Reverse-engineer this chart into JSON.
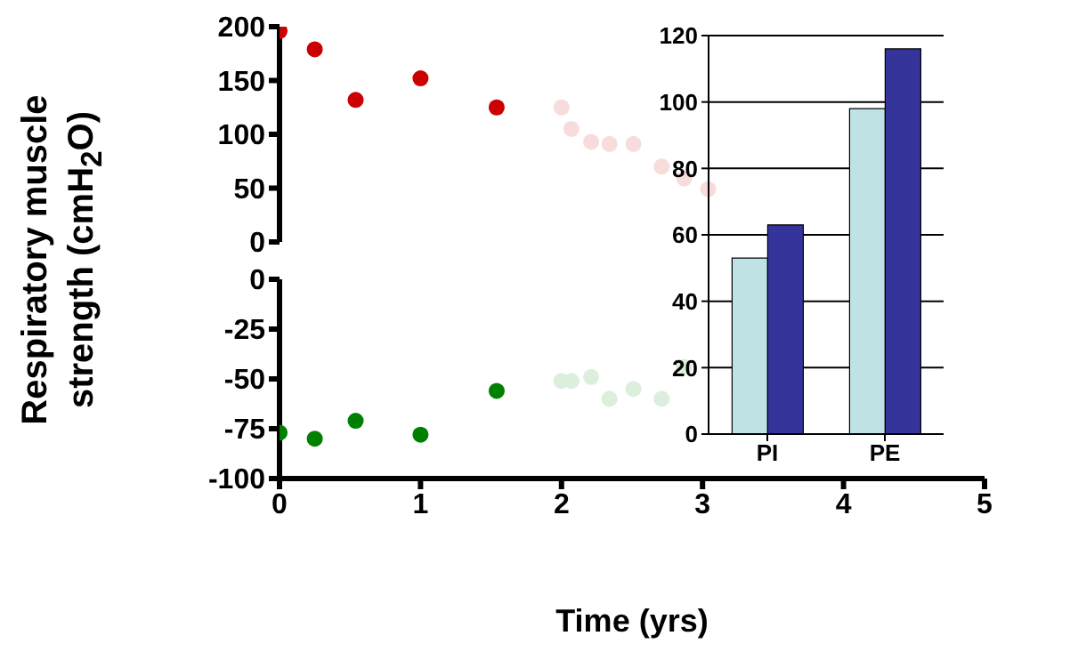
{
  "chart_data": [
    {
      "type": "scatter",
      "ylabel": "Respiratory muscle strength (cmH$_{2}$O)",
      "xlim": [
        0,
        5
      ],
      "ylim": [
        0,
        200
      ],
      "yticks": [
        0,
        50,
        100,
        150,
        200
      ],
      "tick_labels": "y",
      "grid": false,
      "marker": "circle",
      "series": [
        {
          "color": "#cc0000",
          "x": [
            0,
            0.25,
            0.54,
            1.0,
            1.54
          ],
          "values": [
            196,
            179,
            132,
            152,
            125
          ]
        },
        {
          "color": "#f8dcdc",
          "x": [
            2.0,
            2.07,
            2.21,
            2.34,
            2.51,
            2.71,
            2.87,
            3.04
          ],
          "values": [
            125,
            105,
            93,
            91,
            91,
            70,
            59,
            49
          ]
        }
      ]
    },
    {
      "type": "scatter",
      "xlabel": "Time (yrs)",
      "xlim": [
        0,
        5
      ],
      "xticks": [
        0,
        1,
        2,
        3,
        4,
        5
      ],
      "ylim": [
        -100,
        0
      ],
      "yticks": [
        0,
        -25,
        -50,
        -75,
        -100
      ],
      "grid": false,
      "marker": "circle",
      "series": [
        {
          "color": "#008000",
          "x": [
            0,
            0.25,
            0.54,
            1.0,
            1.54
          ],
          "values": [
            -77,
            -80,
            -71,
            -78,
            -56
          ]
        },
        {
          "color": "#dceedc",
          "x": [
            2.0,
            2.07,
            2.21,
            2.34,
            2.51,
            2.71,
            2.87
          ],
          "values": [
            -51,
            -51,
            -49,
            -60,
            -55,
            -60,
            -44
          ]
        }
      ]
    },
    {
      "type": "bar",
      "categories": [
        "PI",
        "PE"
      ],
      "ylim": [
        0,
        120
      ],
      "yticks": [
        0,
        20,
        40,
        60,
        80,
        100,
        120
      ],
      "grid": "y",
      "series": [
        {
          "color": "#bfe3e5",
          "values": [
            53,
            98
          ]
        },
        {
          "color": "#35349a",
          "values": [
            63,
            116
          ]
        }
      ]
    }
  ]
}
